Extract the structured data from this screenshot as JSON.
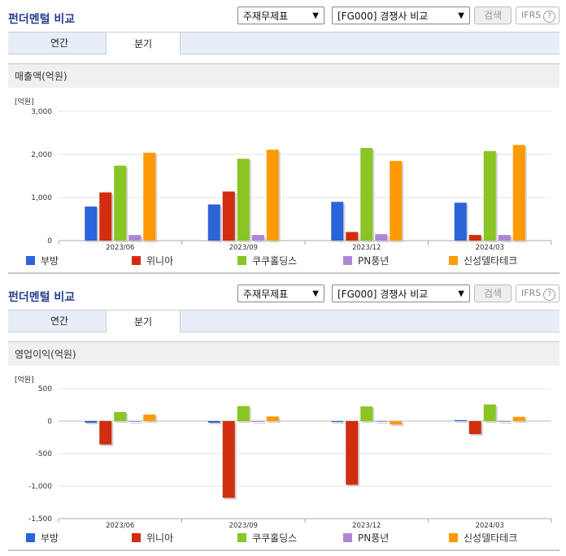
{
  "colors": {
    "title": "#2a3f8f",
    "series": [
      "#2b63d8",
      "#d12e0f",
      "#8ac425",
      "#ad86d6",
      "#fd9a06"
    ]
  },
  "charts": [
    {
      "header": {
        "title": "펀더멘털 비교",
        "select1": "주재무제표",
        "select2": "[FG000] 경쟁사 비교",
        "search_label": "검색",
        "ifrs_label": "IFRS",
        "help_icon": "question-icon"
      },
      "tabs": [
        {
          "label": "연간",
          "active": false
        },
        {
          "label": "분기",
          "active": true
        }
      ],
      "chart_title": "매출액(억원)",
      "unit_label": "[억원]",
      "legend": [
        "부방",
        "위니아",
        "쿠쿠홀딩스",
        "PN풍년",
        "신성델타테크"
      ]
    },
    {
      "header": {
        "title": "펀더멘털 비교",
        "select1": "주재무제표",
        "select2": "[FG000] 경쟁사 비교",
        "search_label": "검색",
        "ifrs_label": "IFRS",
        "help_icon": "question-icon"
      },
      "tabs": [
        {
          "label": "연간",
          "active": false
        },
        {
          "label": "분기",
          "active": true
        }
      ],
      "chart_title": "영업이익(억원)",
      "unit_label": "[억원]",
      "legend": [
        "부방",
        "위니아",
        "쿠쿠홀딩스",
        "PN풍년",
        "신성델타테크"
      ]
    }
  ],
  "chart_data": [
    {
      "type": "bar",
      "title": "매출액(억원)",
      "ylabel": "[억원]",
      "categories": [
        "2023/06",
        "2023/09",
        "2023/12",
        "2024/03"
      ],
      "yticks": [
        "3,000",
        "2,000",
        "1,000",
        "0"
      ],
      "ylim": [
        0,
        3000
      ],
      "series": [
        {
          "name": "부방",
          "values": [
            790,
            840,
            900,
            880
          ]
        },
        {
          "name": "위니아",
          "values": [
            1120,
            1140,
            200,
            130
          ]
        },
        {
          "name": "쿠쿠홀딩스",
          "values": [
            1740,
            1900,
            2150,
            2080
          ]
        },
        {
          "name": "PN풍년",
          "values": [
            130,
            130,
            150,
            130
          ]
        },
        {
          "name": "신성델타테크",
          "values": [
            2040,
            2110,
            1850,
            2220
          ]
        }
      ]
    },
    {
      "type": "bar",
      "title": "영업이익(억원)",
      "ylabel": "[억원]",
      "categories": [
        "2023/06",
        "2023/09",
        "2023/12",
        "2024/03"
      ],
      "yticks": [
        "500",
        "0",
        "-500",
        "-1,000",
        "-1,500"
      ],
      "ylim": [
        -1500,
        500
      ],
      "series": [
        {
          "name": "부방",
          "values": [
            -25,
            -25,
            -15,
            15
          ]
        },
        {
          "name": "위니아",
          "values": [
            -360,
            -1180,
            -980,
            -200
          ]
        },
        {
          "name": "쿠쿠홀딩스",
          "values": [
            140,
            230,
            225,
            255
          ]
        },
        {
          "name": "PN풍년",
          "values": [
            -10,
            -10,
            -10,
            -10
          ]
        },
        {
          "name": "신성델타테크",
          "values": [
            100,
            70,
            -50,
            65
          ]
        }
      ]
    }
  ]
}
